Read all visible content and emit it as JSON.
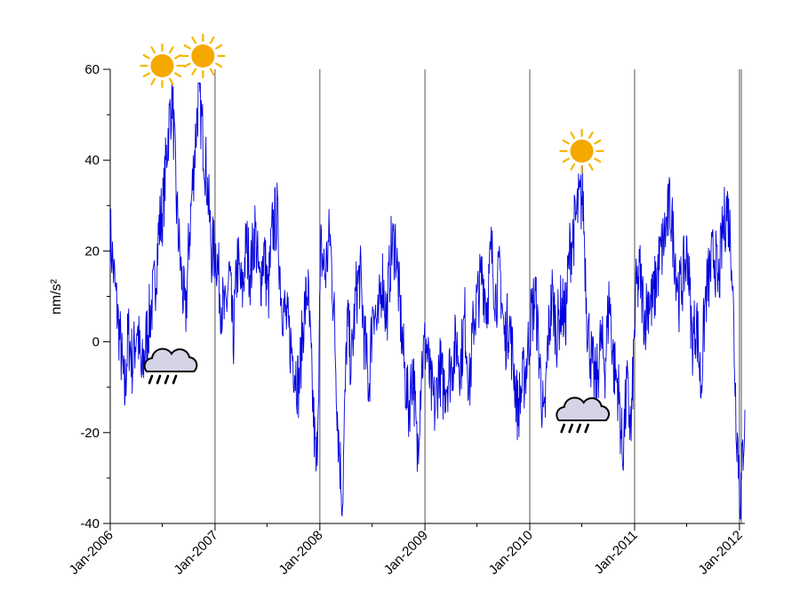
{
  "chart_data": {
    "type": "line",
    "title": "",
    "xlabel": "",
    "ylabel": "nm/s²",
    "xlim": [
      "2006-01-01",
      "2012-01-20"
    ],
    "ylim": [
      -40,
      60
    ],
    "y_ticks": [
      "60",
      "40",
      "20",
      "0",
      "-20",
      "-40"
    ],
    "x_ticks": [
      "Jan-2006",
      "Jan-2007",
      "Jan-2008",
      "Jan-2009",
      "Jan-2010",
      "Jan-2011",
      "Jan-2012"
    ],
    "vertical_gridlines": true,
    "line_color": "#0000dd",
    "series": [
      {
        "values_note_free": true,
        "x": [
          "2006-01-01",
          "2006-01-20",
          "2006-02-05",
          "2006-02-20",
          "2006-03-05",
          "2006-03-20",
          "2006-04-05",
          "2006-04-20",
          "2006-05-05",
          "2006-05-20",
          "2006-06-05",
          "2006-06-20",
          "2006-07-05",
          "2006-07-20",
          "2006-08-05",
          "2006-08-20",
          "2006-09-05",
          "2006-09-20",
          "2006-10-05",
          "2006-10-20",
          "2006-11-05",
          "2006-11-20",
          "2006-12-05",
          "2006-12-20",
          "2007-01-05",
          "2007-01-20",
          "2007-02-05",
          "2007-02-20",
          "2007-03-05",
          "2007-03-20",
          "2007-04-05",
          "2007-04-20",
          "2007-05-05",
          "2007-05-20",
          "2007-06-05",
          "2007-06-20",
          "2007-07-05",
          "2007-07-20",
          "2007-08-05",
          "2007-08-20",
          "2007-09-05",
          "2007-09-20",
          "2007-10-05",
          "2007-10-20",
          "2007-11-05",
          "2007-11-20",
          "2007-12-05",
          "2007-12-20",
          "2008-01-05",
          "2008-01-20",
          "2008-02-05",
          "2008-02-20",
          "2008-03-05",
          "2008-03-20",
          "2008-04-05",
          "2008-04-20",
          "2008-05-05",
          "2008-05-20",
          "2008-06-05",
          "2008-06-20",
          "2008-07-05",
          "2008-07-20",
          "2008-08-05",
          "2008-08-20",
          "2008-09-05",
          "2008-09-20",
          "2008-10-05",
          "2008-10-20",
          "2008-11-05",
          "2008-11-20",
          "2008-12-05",
          "2008-12-20",
          "2009-01-05",
          "2009-01-20",
          "2009-02-05",
          "2009-02-20",
          "2009-03-05",
          "2009-03-20",
          "2009-04-05",
          "2009-04-20",
          "2009-05-05",
          "2009-05-20",
          "2009-06-05",
          "2009-06-20",
          "2009-07-05",
          "2009-07-20",
          "2009-08-05",
          "2009-08-20",
          "2009-09-05",
          "2009-09-20",
          "2009-10-05",
          "2009-10-20",
          "2009-11-05",
          "2009-11-20",
          "2009-12-05",
          "2009-12-20",
          "2010-01-05",
          "2010-01-20",
          "2010-02-05",
          "2010-02-20",
          "2010-03-05",
          "2010-03-20",
          "2010-04-05",
          "2010-04-20",
          "2010-05-05",
          "2010-05-20",
          "2010-06-05",
          "2010-06-20",
          "2010-07-05",
          "2010-07-20",
          "2010-08-05",
          "2010-08-20",
          "2010-09-05",
          "2010-09-20",
          "2010-10-05",
          "2010-10-20",
          "2010-11-05",
          "2010-11-20",
          "2010-12-05",
          "2010-12-20",
          "2011-01-05",
          "2011-01-20",
          "2011-02-05",
          "2011-02-20",
          "2011-03-05",
          "2011-03-20",
          "2011-04-05",
          "2011-04-20",
          "2011-05-05",
          "2011-05-20",
          "2011-06-05",
          "2011-06-20",
          "2011-07-05",
          "2011-07-20",
          "2011-08-05",
          "2011-08-20",
          "2011-09-05",
          "2011-09-20",
          "2011-10-05",
          "2011-10-20",
          "2011-11-05",
          "2011-11-20",
          "2011-12-05",
          "2011-12-20",
          "2012-01-05",
          "2012-01-20"
        ],
        "y": [
          24,
          10,
          0,
          -12,
          2,
          -5,
          4,
          -8,
          0,
          6,
          12,
          25,
          30,
          45,
          55,
          30,
          15,
          5,
          25,
          40,
          55,
          45,
          35,
          20,
          20,
          10,
          5,
          15,
          0,
          18,
          10,
          22,
          15,
          25,
          12,
          20,
          10,
          25,
          28,
          10,
          5,
          0,
          -5,
          -10,
          5,
          12,
          -10,
          -30,
          20,
          15,
          24,
          5,
          -20,
          -35,
          5,
          -5,
          10,
          15,
          0,
          -10,
          10,
          2,
          15,
          5,
          20,
          22,
          8,
          -5,
          -15,
          -5,
          -25,
          -5,
          0,
          -10,
          -15,
          -5,
          -10,
          -8,
          -5,
          0,
          -5,
          5,
          -10,
          5,
          10,
          15,
          8,
          20,
          10,
          15,
          0,
          5,
          -5,
          -15,
          -10,
          -5,
          5,
          10,
          -5,
          -20,
          0,
          10,
          2,
          8,
          5,
          20,
          25,
          30,
          32,
          5,
          -5,
          -10,
          0,
          -5,
          10,
          -5,
          -10,
          -25,
          -10,
          -20,
          10,
          15,
          5,
          10,
          8,
          15,
          20,
          25,
          30,
          20,
          10,
          15,
          20,
          0,
          5,
          -10,
          10,
          15,
          20,
          12,
          25,
          30,
          20,
          -15,
          -35,
          -15
        ]
      }
    ],
    "annotations": [
      {
        "icon": "sun-icon",
        "x": "2006-07-01"
      },
      {
        "icon": "sun-icon",
        "x": "2006-11-20"
      },
      {
        "icon": "sun-icon",
        "x": "2010-07-01"
      },
      {
        "icon": "rain-cloud-icon",
        "x": "2006-08-15"
      },
      {
        "icon": "rain-cloud-icon",
        "x": "2010-07-20"
      }
    ]
  }
}
